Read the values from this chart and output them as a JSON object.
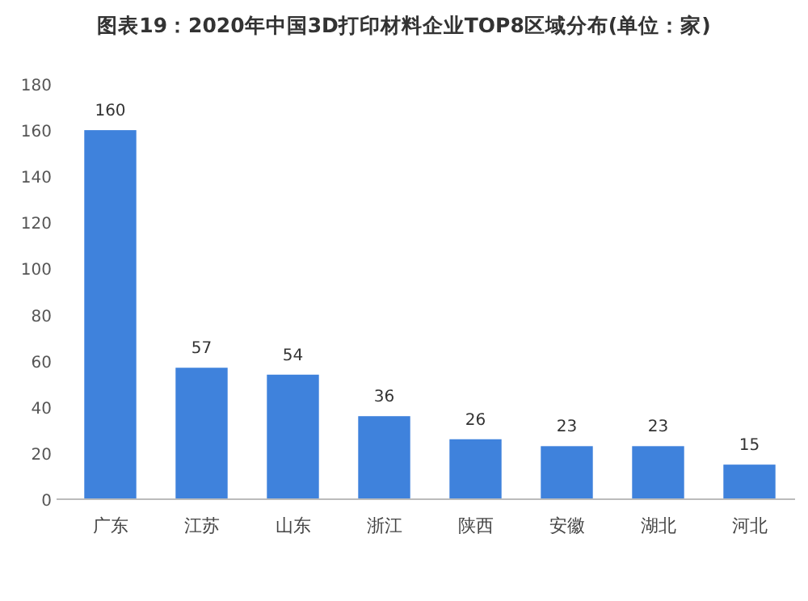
{
  "chart_data": {
    "type": "bar",
    "title": "图表19：2020年中国3D打印材料企业TOP8区域分布(单位：家)",
    "categories": [
      "广东",
      "江苏",
      "山东",
      "浙江",
      "陕西",
      "安徽",
      "湖北",
      "河北"
    ],
    "values": [
      160,
      57,
      54,
      36,
      26,
      23,
      23,
      15
    ],
    "color": "#3f82dc",
    "ylim": [
      0,
      180
    ],
    "yticks": [
      0,
      20,
      40,
      60,
      80,
      100,
      120,
      140,
      160,
      180
    ],
    "data_labels": true
  }
}
